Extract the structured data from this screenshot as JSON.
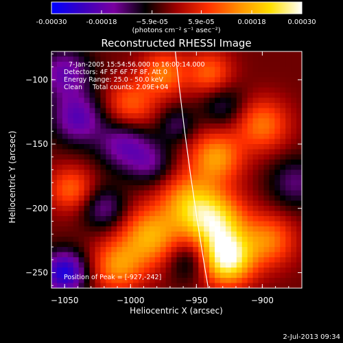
{
  "chart_data": {
    "type": "heatmap",
    "title": "Reconstructed RHESSI Image",
    "xlabel": "Heliocentric X (arcsec)",
    "ylabel": "Heliocentric Y (arcsec)",
    "xlim": [
      -1060,
      -870
    ],
    "ylim": [
      -262,
      -78
    ],
    "xticks": [
      -1050,
      -1000,
      -950,
      -900
    ],
    "xtick_labels": [
      "−1050",
      "−1000",
      "−950",
      "−900"
    ],
    "yticks": [
      -100,
      -150,
      -200,
      -250
    ],
    "ytick_labels": [
      "−100",
      "−150",
      "−200",
      "−250"
    ],
    "colorbar": {
      "min": -0.0003,
      "max": 0.0003,
      "ticks": [
        -0.0003,
        -0.00018,
        -5.9e-05,
        5.9e-05,
        0.00018,
        0.0003
      ],
      "tick_labels": [
        "-0.00030",
        "-0.00018",
        "−5.9e-05",
        "5.9e-05",
        "0.00018",
        "0.00030"
      ],
      "unit_label": "(photons cm⁻² s⁻¹ asec⁻²)",
      "stops": [
        "#0000ff",
        "#3a00c0",
        "#7a00a0",
        "#000000",
        "#a00000",
        "#ff3000",
        "#ff9000",
        "#ffe000",
        "#ffffff"
      ]
    },
    "annotations": [
      "7-Jan-2005 15:54:56.000 to 16:00:14.000",
      "Detectors: 4F 5F 6F 7F 8F, Att 0",
      "Energy Range: 25.0 - 50.0 keV",
      "Clean     Total counts: 2.09E+04"
    ],
    "peak_label": "Position of Peak = [-927,-242]",
    "peak": [
      -927,
      -242
    ],
    "limb_curve": [
      [
        -966,
        -78
      ],
      [
        -955,
        -170
      ],
      [
        -941,
        -262
      ]
    ],
    "blobs": [
      {
        "x": -927,
        "y": -240,
        "amp": 1.0,
        "s": 14
      },
      {
        "x": -935,
        "y": -212,
        "amp": 0.8,
        "s": 16
      },
      {
        "x": -955,
        "y": -195,
        "amp": 0.6,
        "s": 16
      },
      {
        "x": -985,
        "y": -222,
        "amp": 0.65,
        "s": 16
      },
      {
        "x": -1010,
        "y": -245,
        "amp": 0.55,
        "s": 14
      },
      {
        "x": -1045,
        "y": -185,
        "amp": 0.45,
        "s": 12
      },
      {
        "x": -935,
        "y": -160,
        "amp": 0.6,
        "s": 14
      },
      {
        "x": -900,
        "y": -135,
        "amp": 0.5,
        "s": 14
      },
      {
        "x": -895,
        "y": -225,
        "amp": 0.5,
        "s": 14
      },
      {
        "x": -1000,
        "y": -120,
        "amp": 0.45,
        "s": 14
      },
      {
        "x": -975,
        "y": -95,
        "amp": 0.5,
        "s": 12
      },
      {
        "x": -940,
        "y": -95,
        "amp": 0.45,
        "s": 12
      },
      {
        "x": -1050,
        "y": -95,
        "amp": -0.5,
        "s": 14
      },
      {
        "x": -1050,
        "y": -250,
        "amp": -0.8,
        "s": 12
      },
      {
        "x": -1040,
        "y": -130,
        "amp": -0.55,
        "s": 14
      },
      {
        "x": -1005,
        "y": -150,
        "amp": -0.5,
        "s": 14
      },
      {
        "x": -985,
        "y": -165,
        "amp": -0.35,
        "s": 12
      },
      {
        "x": -955,
        "y": -240,
        "amp": -0.35,
        "s": 12
      },
      {
        "x": -875,
        "y": -180,
        "amp": -0.35,
        "s": 14
      },
      {
        "x": -930,
        "y": -120,
        "amp": -0.3,
        "s": 12
      },
      {
        "x": -1020,
        "y": -200,
        "amp": -0.4,
        "s": 12
      },
      {
        "x": -965,
        "y": -135,
        "amp": -0.3,
        "s": 10
      }
    ]
  },
  "footer": {
    "timestamp": "2-Jul-2013 09:34"
  }
}
